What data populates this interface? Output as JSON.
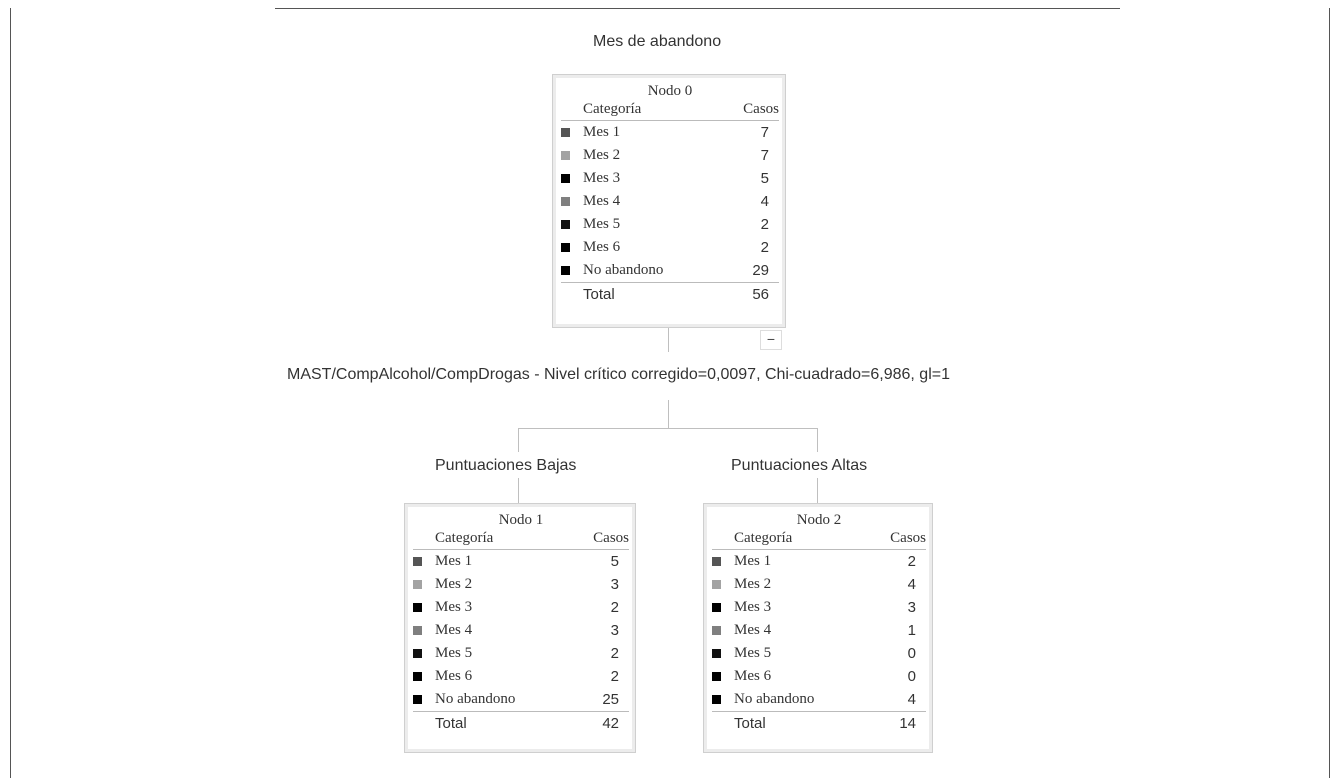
{
  "title": "Mes de abandono",
  "split_label": "MAST/CompAlcohol/CompDrogas -  Nivel crítico corregido=0,0097, Chi-cuadrado=6,986, gl=1",
  "collapse_symbol": "−",
  "colors": {
    "mes1": "#555555",
    "mes2": "#a3a3a3",
    "mes3": "#000000",
    "mes4": "#7f7f7f",
    "mes5": "#111111",
    "mes6": "#000000",
    "no_abandono": "#000000"
  },
  "branches": {
    "left": "Puntuaciones Bajas",
    "right": "Puntuaciones Altas"
  },
  "nodes": [
    {
      "title": "Nodo 0",
      "header": {
        "category": "Categoría",
        "cases": "Casos"
      },
      "rows": [
        {
          "label": "Mes 1",
          "value": "7"
        },
        {
          "label": "Mes 2",
          "value": "7"
        },
        {
          "label": "Mes 3",
          "value": "5"
        },
        {
          "label": "Mes 4",
          "value": "4"
        },
        {
          "label": "Mes 5",
          "value": "2"
        },
        {
          "label": "Mes 6",
          "value": "2"
        },
        {
          "label": "No abandono",
          "value": "29"
        }
      ],
      "total": {
        "label": "Total",
        "value": "56"
      }
    },
    {
      "title": "Nodo 1",
      "header": {
        "category": "Categoría",
        "cases": "Casos"
      },
      "rows": [
        {
          "label": "Mes 1",
          "value": "5"
        },
        {
          "label": "Mes 2",
          "value": "3"
        },
        {
          "label": "Mes 3",
          "value": "2"
        },
        {
          "label": "Mes 4",
          "value": "3"
        },
        {
          "label": "Mes 5",
          "value": "2"
        },
        {
          "label": "Mes 6",
          "value": "2"
        },
        {
          "label": "No abandono",
          "value": "25"
        }
      ],
      "total": {
        "label": "Total",
        "value": "42"
      }
    },
    {
      "title": "Nodo 2",
      "header": {
        "category": "Categoría",
        "cases": "Casos"
      },
      "rows": [
        {
          "label": "Mes 1",
          "value": "2"
        },
        {
          "label": "Mes 2",
          "value": "4"
        },
        {
          "label": "Mes 3",
          "value": "3"
        },
        {
          "label": "Mes 4",
          "value": "1"
        },
        {
          "label": "Mes 5",
          "value": "0"
        },
        {
          "label": "Mes 6",
          "value": "0"
        },
        {
          "label": "No abandono",
          "value": "4"
        }
      ],
      "total": {
        "label": "Total",
        "value": "14"
      }
    }
  ]
}
